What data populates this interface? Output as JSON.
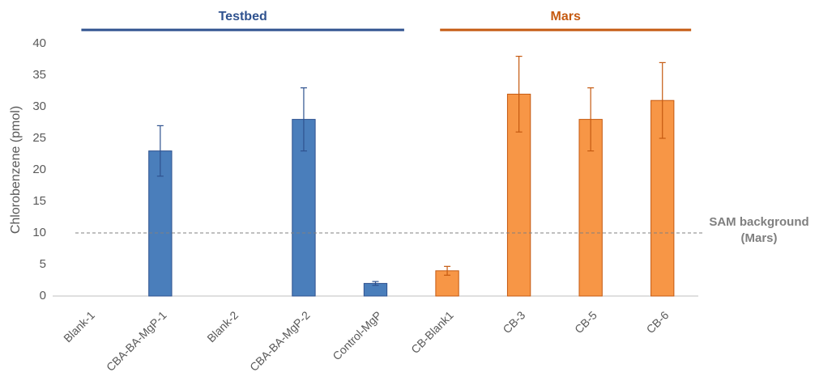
{
  "chart_data": {
    "type": "bar",
    "y_label": "Chlorobenzene (pmol)",
    "categories": [
      "Blank-1",
      "CBA-BA-MgP-1",
      "Blank-2",
      "CBA-BA-MgP-2",
      "Control-MgP",
      "CB-Blank1",
      "CB-3",
      "CB-5",
      "CB-6"
    ],
    "series": [
      {
        "name": "Testbed",
        "color": "#4a7ebb",
        "edge": "#2f528f",
        "values": [
          0,
          23,
          0,
          28,
          2,
          null,
          null,
          null,
          null
        ],
        "errors": [
          null,
          4,
          null,
          5,
          0.3,
          null,
          null,
          null,
          null
        ]
      },
      {
        "name": "Mars",
        "color": "#f79646",
        "edge": "#c55a11",
        "values": [
          null,
          null,
          null,
          null,
          null,
          4,
          32,
          28,
          31
        ],
        "errors": [
          null,
          null,
          null,
          null,
          null,
          0.7,
          6,
          5,
          6
        ]
      }
    ],
    "reference_line": {
      "value": 10,
      "text": [
        "SAM background",
        "(Mars)"
      ]
    },
    "ylim": [
      0,
      40
    ],
    "yticks": [
      0,
      5,
      10,
      15,
      20,
      25,
      30,
      35,
      40
    ],
    "grid": false
  }
}
